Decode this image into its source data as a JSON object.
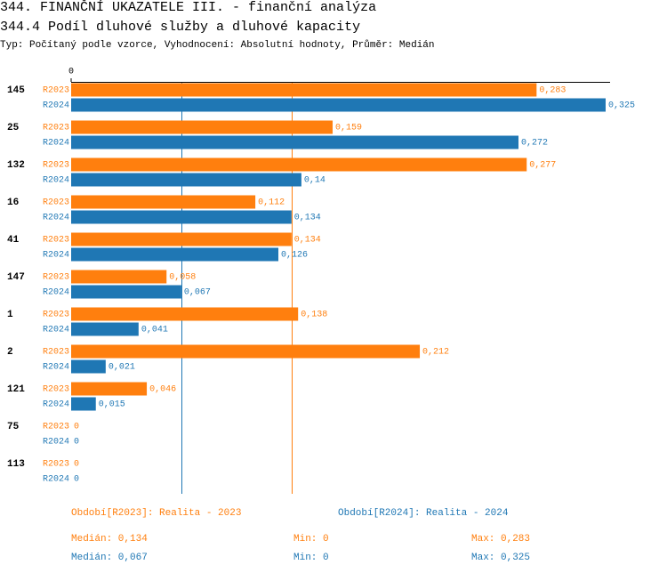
{
  "chart_data": {
    "type": "bar",
    "orientation": "horizontal",
    "title": "344. FINANČNÍ UKAZATELE III. - finanční analýza",
    "subtitle": "344.4 Podíl dluhové služby a dluhové kapacity",
    "description": "Typ: Počítaný podle vzorce, Vyhodnocení: Absolutní hodnoty, Průměr: Medián",
    "categories": [
      "145",
      "25",
      "132",
      "16",
      "41",
      "147",
      "1",
      "2",
      "121",
      "75",
      "113"
    ],
    "xlim": [
      0,
      0.325
    ],
    "xticks": [
      0
    ],
    "series": [
      {
        "name": "R2023",
        "color": "#ff7f0e",
        "values": [
          0.283,
          0.159,
          0.277,
          0.112,
          0.134,
          0.058,
          0.138,
          0.212,
          0.046,
          0,
          0
        ],
        "value_labels": [
          "0,283",
          "0,159",
          "0,277",
          "0,112",
          "0,134",
          "0,058",
          "0,138",
          "0,212",
          "0,046",
          "0",
          "0"
        ],
        "period": "Období[R2023]: Realita - 2023",
        "median": 0.134,
        "median_text": "Medián: 0,134",
        "min_text": "Min: 0",
        "max_text": "Max: 0,283"
      },
      {
        "name": "R2024",
        "color": "#1f77b4",
        "values": [
          0.325,
          0.272,
          0.14,
          0.134,
          0.126,
          0.067,
          0.041,
          0.021,
          0.015,
          0,
          0
        ],
        "value_labels": [
          "0,325",
          "0,272",
          "0,14",
          "0,134",
          "0,126",
          "0,067",
          "0,041",
          "0,021",
          "0,015",
          "0",
          "0"
        ],
        "period": "Období[R2024]: Realita - 2024",
        "median": 0.067,
        "median_text": "Medián: 0,067",
        "min_text": "Min: 0",
        "max_text": "Max: 0,325"
      }
    ]
  }
}
